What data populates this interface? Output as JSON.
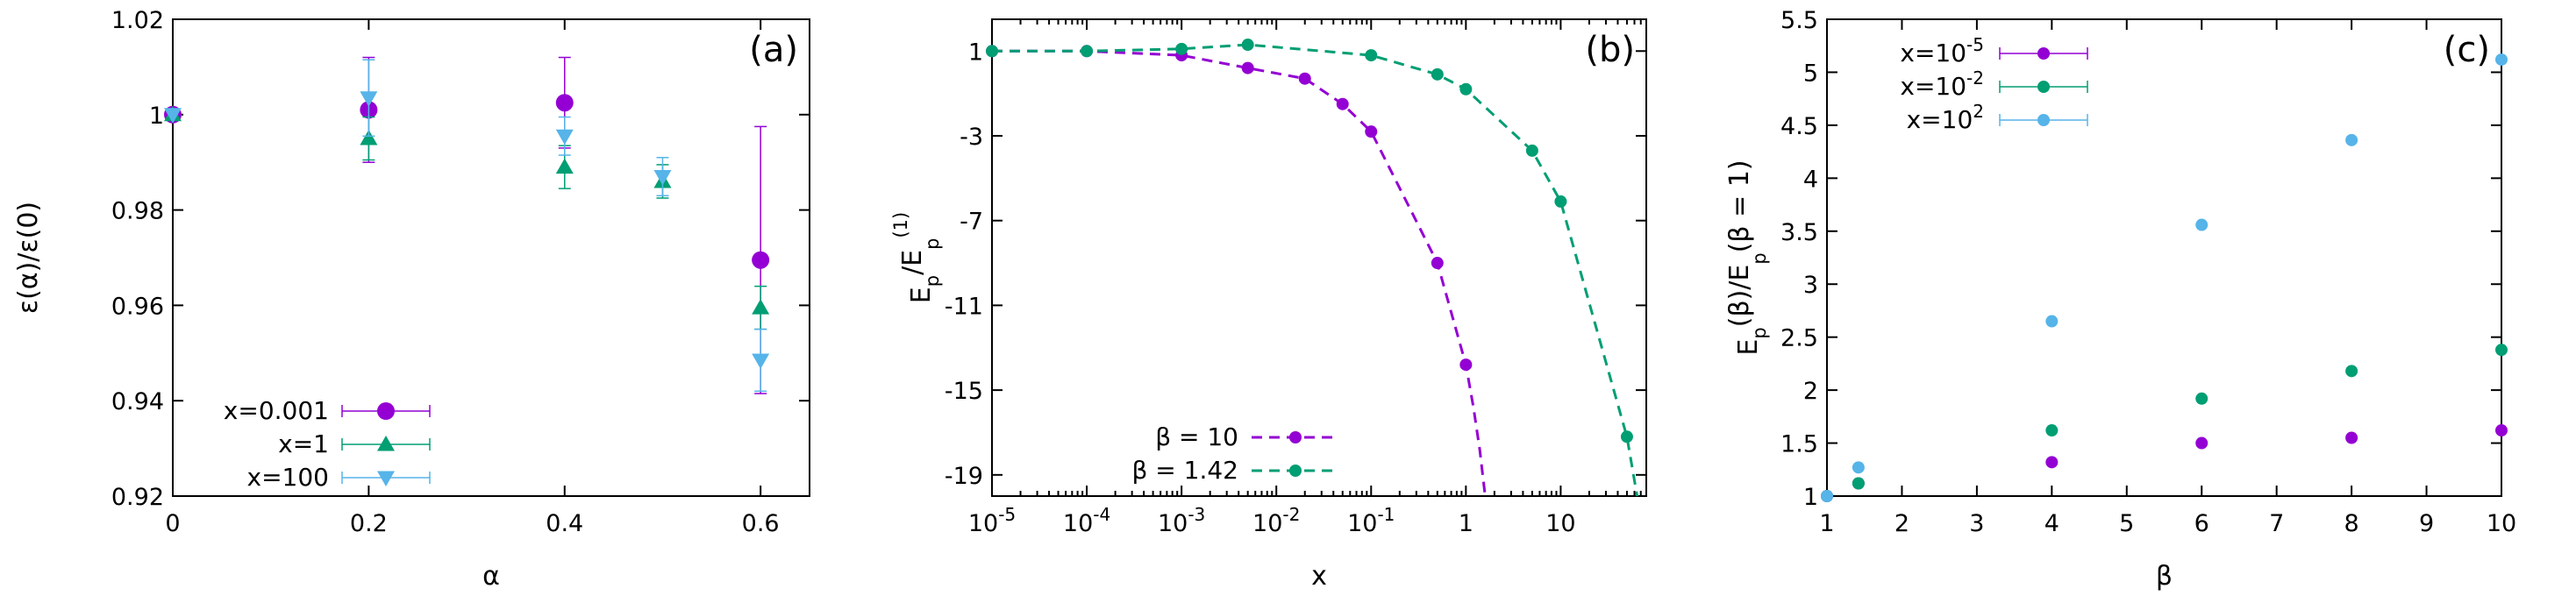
{
  "chart_data": [
    {
      "type": "scatter",
      "panel_label": "(a)",
      "xlabel": "α",
      "ylabel": "ε(α)/ε(0)",
      "xlim": [
        0,
        0.65
      ],
      "ylim": [
        0.92,
        1.02
      ],
      "xticks": [
        0,
        0.2,
        0.4,
        0.6
      ],
      "xtick_labels": [
        "0",
        "0.2",
        "0.4",
        "0.6"
      ],
      "yticks": [
        0.92,
        0.94,
        0.96,
        0.98,
        1.0,
        1.02
      ],
      "ytick_labels": [
        "0.92",
        "0.94",
        "0.96",
        "0.98",
        "1",
        "1.02"
      ],
      "legend_position": "bottom-left",
      "series": [
        {
          "name": "x=0.001",
          "color": "#9400d3",
          "marker": "circle",
          "x": [
            0,
            0.2,
            0.4,
            0.6
          ],
          "y": [
            1.0,
            1.001,
            1.0025,
            0.9695
          ],
          "err": [
            0,
            0.011,
            0.0095,
            0.028
          ]
        },
        {
          "name": "x=1",
          "color": "#009e73",
          "marker": "triangle-up",
          "x": [
            0,
            0.2,
            0.4,
            0.5,
            0.6
          ],
          "y": [
            1.0,
            0.995,
            0.989,
            0.986,
            0.9595
          ],
          "err": [
            0,
            0.0045,
            0.0045,
            0.0035,
            0.0045
          ]
        },
        {
          "name": "x=100",
          "color": "#56b4e9",
          "marker": "triangle-down",
          "x": [
            0,
            0.2,
            0.4,
            0.5,
            0.6
          ],
          "y": [
            1.0,
            1.0035,
            0.9955,
            0.987,
            0.9485
          ],
          "err": [
            0,
            0.008,
            0.004,
            0.004,
            0.0065
          ]
        }
      ]
    },
    {
      "type": "line",
      "panel_label": "(b)",
      "xlabel": "x",
      "ylabel": "E_p/E_p^(1)",
      "xscale": "log",
      "xlim": [
        1e-05,
        80
      ],
      "ylim": [
        -20,
        2.5
      ],
      "xticks": [
        1e-05,
        0.0001,
        0.001,
        0.01,
        0.1,
        1,
        10
      ],
      "xtick_labels": [
        {
          "base": "10",
          "exp": "-5"
        },
        {
          "base": "10",
          "exp": "-4"
        },
        {
          "base": "10",
          "exp": "-3"
        },
        {
          "base": "10",
          "exp": "-2"
        },
        {
          "base": "10",
          "exp": "-1"
        },
        {
          "base": "1",
          "exp": ""
        },
        {
          "base": "10",
          "exp": ""
        }
      ],
      "yticks": [
        1,
        -3,
        -7,
        -11,
        -15,
        -19
      ],
      "ytick_labels": [
        "1",
        "-3",
        "-7",
        "-11",
        "-15",
        "-19"
      ],
      "legend_position": "bottom-left",
      "series": [
        {
          "name": "β = 10",
          "color": "#9400d3",
          "style": "dashed-markers",
          "x": [
            1e-05,
            0.0001,
            0.001,
            0.005,
            0.02,
            0.05,
            0.1,
            0.5,
            1
          ],
          "y": [
            1.0,
            1.0,
            0.8,
            0.2,
            -0.3,
            -1.5,
            -2.8,
            -9.0,
            -13.8
          ],
          "curve_extension": [
            [
              1.2,
              -15.8
            ],
            [
              1.4,
              -17.8
            ],
            [
              1.55,
              -19.5
            ],
            [
              1.65,
              -20.5
            ]
          ]
        },
        {
          "name": "β = 1.42",
          "color": "#009e73",
          "style": "dashed-markers",
          "x": [
            1e-05,
            0.0001,
            0.001,
            0.005,
            0.1,
            0.5,
            1,
            5,
            10,
            50
          ],
          "y": [
            1.0,
            1.0,
            1.1,
            1.3,
            0.8,
            -0.1,
            -0.8,
            -3.7,
            -6.1,
            -17.2
          ],
          "curve_extension": [
            [
              70,
              -21
            ]
          ]
        }
      ]
    },
    {
      "type": "scatter",
      "panel_label": "(c)",
      "xlabel": "β",
      "ylabel": "E_p(β)/E_p(β = 1)",
      "xlim": [
        1,
        10
      ],
      "ylim": [
        1,
        5.5
      ],
      "xticks": [
        1,
        2,
        3,
        4,
        5,
        6,
        7,
        8,
        9,
        10
      ],
      "xtick_labels": [
        "1",
        "2",
        "3",
        "4",
        "5",
        "6",
        "7",
        "8",
        "9",
        "10"
      ],
      "yticks": [
        1,
        1.5,
        2,
        2.5,
        3,
        3.5,
        4,
        4.5,
        5,
        5.5
      ],
      "ytick_labels": [
        "1",
        "1.5",
        "2",
        "2.5",
        "3",
        "3.5",
        "4",
        "4.5",
        "5",
        "5.5"
      ],
      "legend_position": "top-left",
      "series": [
        {
          "name": {
            "base": "x=10",
            "exp": "-5"
          },
          "color": "#9400d3",
          "marker": "circle",
          "x": [
            1,
            1.42,
            4,
            6,
            8,
            10
          ],
          "y": [
            1.0,
            1.12,
            1.32,
            1.5,
            1.55,
            1.62
          ]
        },
        {
          "name": {
            "base": "x=10",
            "exp": "-2"
          },
          "color": "#009e73",
          "marker": "circle",
          "x": [
            1,
            1.42,
            4,
            6,
            8,
            10
          ],
          "y": [
            1.0,
            1.12,
            1.62,
            1.92,
            2.18,
            2.38
          ]
        },
        {
          "name": {
            "base": "x=10",
            "exp": "2"
          },
          "color": "#56b4e9",
          "marker": "circle",
          "x": [
            1,
            1.42,
            4,
            6,
            8,
            10
          ],
          "y": [
            1.0,
            1.27,
            2.65,
            3.56,
            4.36,
            5.12
          ]
        }
      ]
    }
  ]
}
